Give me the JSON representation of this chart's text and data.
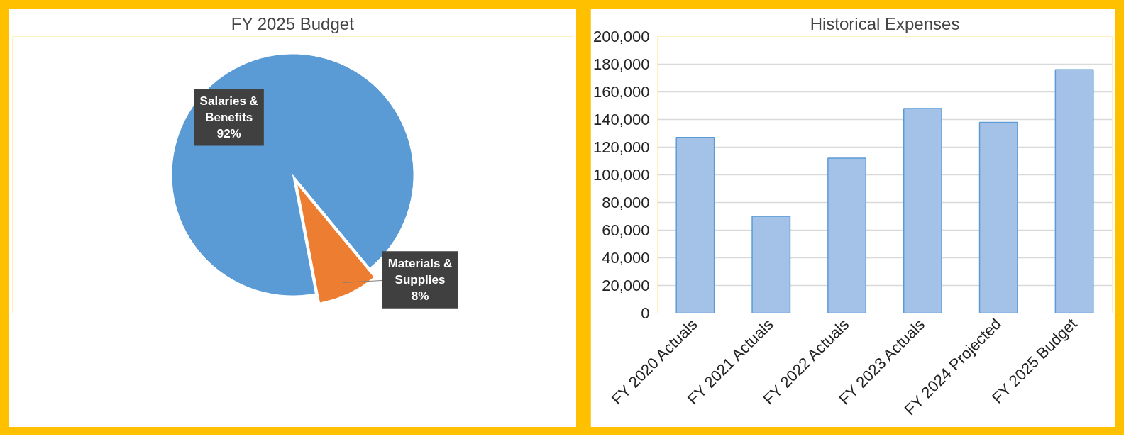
{
  "chart_data": [
    {
      "type": "pie",
      "title": "FY 2025 Budget",
      "categories": [
        "Salaries & Benefits",
        "Materials & Supplies"
      ],
      "values": [
        92,
        8
      ],
      "colors": [
        "#5b9bd5",
        "#ed7d31"
      ],
      "value_labels": [
        "92%",
        "8%"
      ],
      "legend": false
    },
    {
      "type": "bar",
      "title": "Historical Expenses",
      "categories": [
        "FY 2020 Actuals",
        "FY 2021 Actuals",
        "FY 2022 Actuals",
        "FY 2023 Actuals",
        "FY 2024 Projected",
        "FY 2025 Budget"
      ],
      "values": [
        127000,
        70000,
        112000,
        148000,
        138000,
        176000
      ],
      "color": "#a4c2e8",
      "ylim": [
        0,
        200000
      ],
      "yticks": [
        0,
        {
          "value": 20000,
          "label": "20,000"
        },
        {
          "value": 40000,
          "label": "40,000"
        },
        {
          "value": 60000,
          "label": "60,000"
        },
        {
          "value": 80000,
          "label": "80,000"
        },
        {
          "value": 100000,
          "label": "100,000"
        },
        {
          "value": 120000,
          "label": "120,000"
        },
        {
          "value": 140000,
          "label": "140,000"
        },
        {
          "value": 160000,
          "label": "160,000"
        },
        {
          "value": 180000,
          "label": "180,000"
        },
        {
          "value": 200000,
          "label": "200,000"
        }
      ],
      "grid": "y",
      "legend": false
    }
  ]
}
